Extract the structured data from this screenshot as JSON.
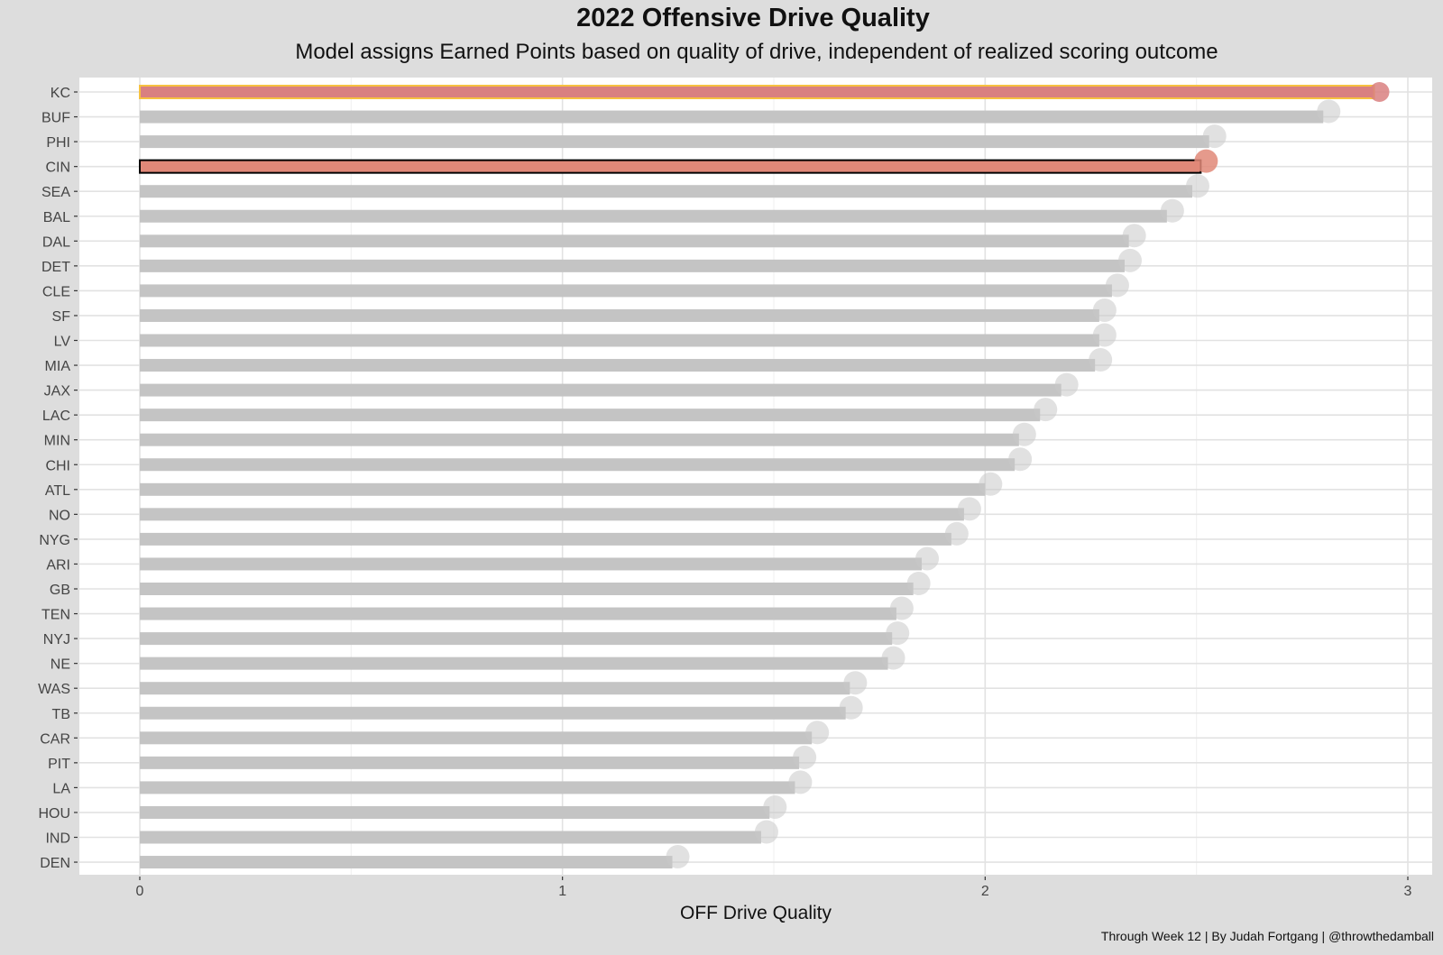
{
  "title": "2022 Offensive Drive Quality",
  "subtitle": "Model assigns Earned Points based on quality of drive, independent of realized scoring outcome",
  "caption": "Through Week 12 | By Judah Fortgang | @throwthedamball",
  "colors": {
    "panel_background": "#ffffff",
    "outer_background": "#dddddd",
    "grid": "#e2e2e2",
    "default_bar": "#c4c4c4",
    "kc_bar": "#d98080",
    "kc_outline": "#f6c140",
    "cin_bar": "#e08878",
    "cin_outline": "#000000"
  },
  "chart_data": {
    "type": "bar",
    "orientation": "horizontal",
    "xlabel": "OFF Drive Quality",
    "ylabel": "",
    "xlim": [
      -0.14,
      3.06
    ],
    "xticks": [
      0,
      1,
      2,
      3
    ],
    "grid": true,
    "categories": [
      "KC",
      "BUF",
      "PHI",
      "CIN",
      "SEA",
      "BAL",
      "DAL",
      "DET",
      "CLE",
      "SF",
      "LV",
      "MIA",
      "JAX",
      "LAC",
      "MIN",
      "CHI",
      "ATL",
      "NO",
      "NYG",
      "ARI",
      "GB",
      "TEN",
      "NYJ",
      "NE",
      "WAS",
      "TB",
      "CAR",
      "PIT",
      "LA",
      "HOU",
      "IND",
      "DEN"
    ],
    "values": [
      2.92,
      2.8,
      2.53,
      2.51,
      2.49,
      2.43,
      2.34,
      2.33,
      2.3,
      2.27,
      2.27,
      2.26,
      2.18,
      2.13,
      2.08,
      2.07,
      2.0,
      1.95,
      1.92,
      1.85,
      1.83,
      1.79,
      1.78,
      1.77,
      1.68,
      1.67,
      1.59,
      1.56,
      1.55,
      1.49,
      1.47,
      1.26
    ],
    "highlight": {
      "KC": {
        "fill": "#d98080",
        "outline": "#f6c140"
      },
      "CIN": {
        "fill": "#e08878",
        "outline": "#000000"
      }
    },
    "logos": [
      "KC",
      "BUF",
      "PHI",
      "CIN",
      "SEA",
      "BAL",
      "DAL",
      "DET",
      "CLE",
      "SF",
      "LV",
      "MIA",
      "JAX",
      "LAC",
      "MIN",
      "CHI",
      "ATL",
      "NO",
      "NYG",
      "ARI",
      "GB",
      "TEN",
      "NYJ",
      "NE",
      "WAS",
      "TB",
      "CAR",
      "PIT",
      "LA",
      "HOU",
      "IND",
      "DEN"
    ]
  }
}
